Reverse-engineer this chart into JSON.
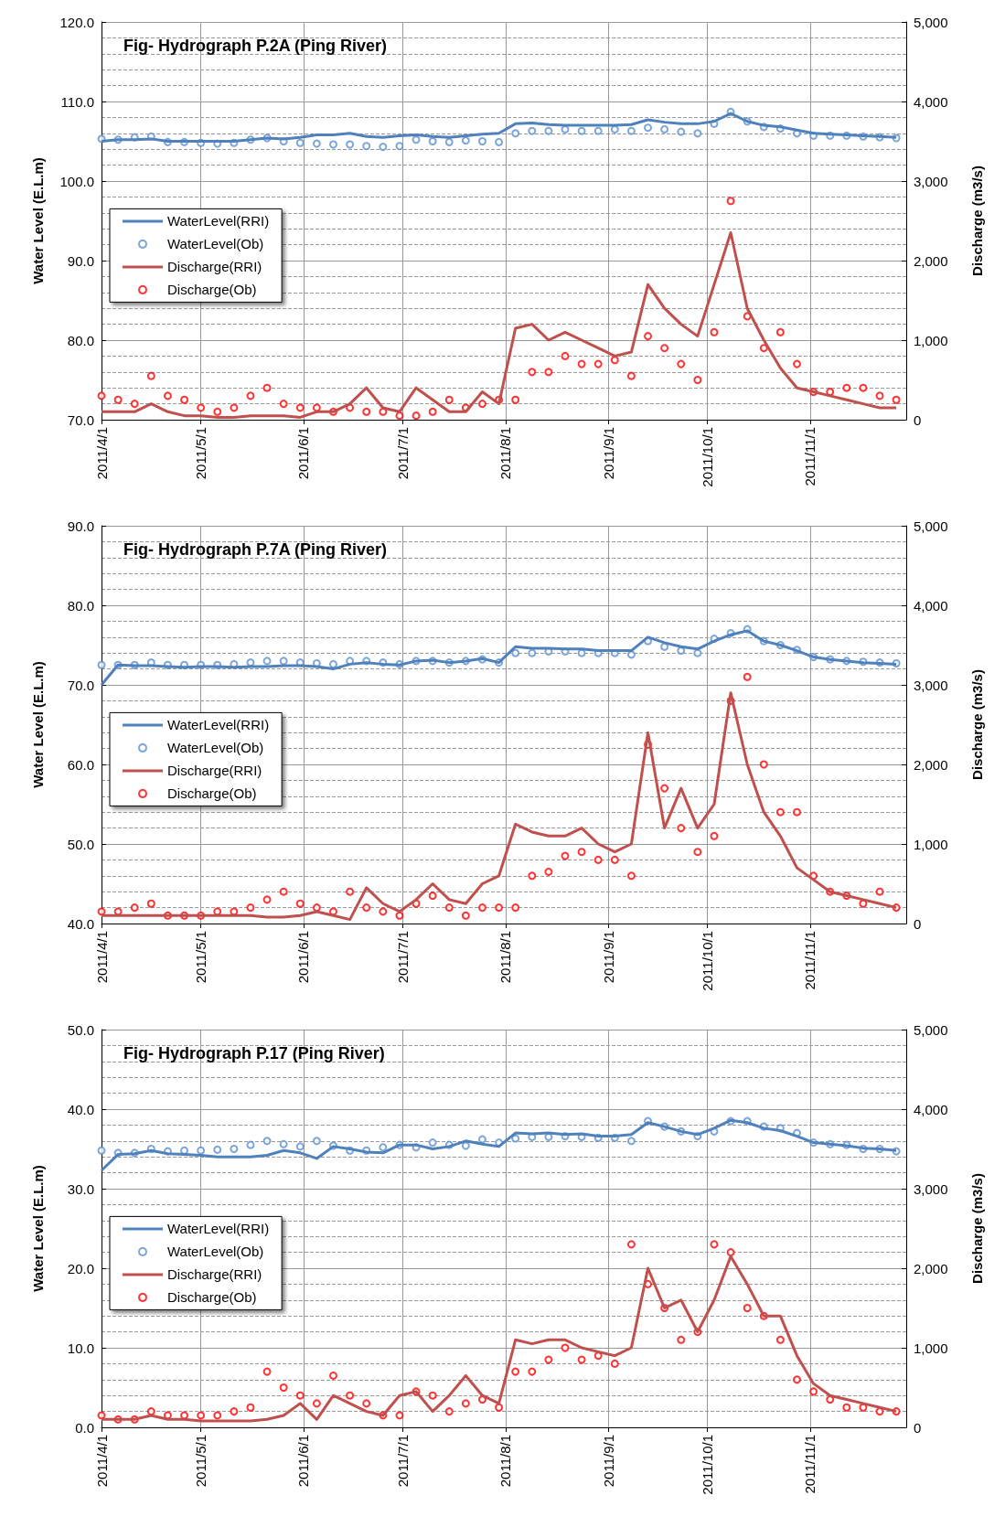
{
  "chart_data": [
    {
      "type": "line",
      "title": "Fig- Hydrograph P.2A (Ping River)",
      "ylabel": "Water Level (E.L.m)",
      "y2label": "Discharge (m3/s)",
      "grid": true,
      "legend": "left",
      "x": [
        "2011-04-01",
        "2011-04-06",
        "2011-04-11",
        "2011-04-16",
        "2011-04-21",
        "2011-04-26",
        "2011-05-01",
        "2011-05-06",
        "2011-05-11",
        "2011-05-16",
        "2011-05-21",
        "2011-05-26",
        "2011-05-31",
        "2011-06-05",
        "2011-06-10",
        "2011-06-15",
        "2011-06-20",
        "2011-06-25",
        "2011-06-30",
        "2011-07-05",
        "2011-07-10",
        "2011-07-15",
        "2011-07-20",
        "2011-07-25",
        "2011-07-30",
        "2011-08-04",
        "2011-08-09",
        "2011-08-14",
        "2011-08-19",
        "2011-08-24",
        "2011-08-29",
        "2011-09-03",
        "2011-09-08",
        "2011-09-13",
        "2011-09-18",
        "2011-09-23",
        "2011-09-28",
        "2011-10-03",
        "2011-10-08",
        "2011-10-13",
        "2011-10-18",
        "2011-10-23",
        "2011-10-28",
        "2011-11-02",
        "2011-11-07",
        "2011-11-12",
        "2011-11-17",
        "2011-11-22",
        "2011-11-27"
      ],
      "xlim": [
        "2011-04-01",
        "2011-11-30"
      ],
      "xticks": [
        {
          "value": "2011-04-01",
          "label": "2011/4/1"
        },
        {
          "value": "2011-05-01",
          "label": "2011/5/1"
        },
        {
          "value": "2011-06-01",
          "label": "2011/6/1"
        },
        {
          "value": "2011-07-01",
          "label": "2011/7/1"
        },
        {
          "value": "2011-08-01",
          "label": "2011/8/1"
        },
        {
          "value": "2011-09-01",
          "label": "2011/9/1"
        },
        {
          "value": "2011-10-01",
          "label": "2011/10/1"
        },
        {
          "value": "2011-11-01",
          "label": "2011/11/1"
        }
      ],
      "ylim": [
        70,
        120
      ],
      "yticks": [
        {
          "value": 70,
          "label": "70.0"
        },
        {
          "value": 80,
          "label": "80.0"
        },
        {
          "value": 90,
          "label": "90.0"
        },
        {
          "value": 100,
          "label": "100.0"
        },
        {
          "value": 110,
          "label": "110.0"
        },
        {
          "value": 120,
          "label": "120.0"
        }
      ],
      "y2lim": [
        0,
        5000
      ],
      "y2ticks": [
        {
          "value": 0,
          "label": "0"
        },
        {
          "value": 1000,
          "label": "1,000"
        },
        {
          "value": 2000,
          "label": "2,000"
        },
        {
          "value": 3000,
          "label": "3,000"
        },
        {
          "value": 4000,
          "label": "4,000"
        },
        {
          "value": 5000,
          "label": "5,000"
        }
      ],
      "series": [
        {
          "name": "WaterLevel(RRI)",
          "marker": "none",
          "color": "#4f81bd",
          "values": [
            105.0,
            105.2,
            105.2,
            105.3,
            105.0,
            105.0,
            105.0,
            105.0,
            105.0,
            105.2,
            105.4,
            105.3,
            105.5,
            105.8,
            105.8,
            106.0,
            105.6,
            105.5,
            105.7,
            105.8,
            105.6,
            105.5,
            105.7,
            105.9,
            106.0,
            107.2,
            107.3,
            107.1,
            107.0,
            107.0,
            107.0,
            107.0,
            107.1,
            107.7,
            107.4,
            107.2,
            107.2,
            107.5,
            108.5,
            107.5,
            107.0,
            106.8,
            106.4,
            106.0,
            105.9,
            105.8,
            105.7,
            105.6,
            105.5
          ]
        },
        {
          "name": "WaterLevel(Ob)",
          "type": "scatter",
          "marker": "circle",
          "color": "#5b8fd1",
          "values": [
            105.3,
            105.2,
            105.5,
            105.6,
            104.9,
            104.9,
            104.8,
            104.7,
            104.8,
            105.2,
            105.4,
            105.0,
            104.8,
            104.7,
            104.6,
            104.6,
            104.4,
            104.3,
            104.4,
            105.2,
            105.0,
            104.9,
            105.1,
            105.0,
            104.9,
            106.0,
            106.3,
            106.3,
            106.5,
            106.3,
            106.3,
            106.5,
            106.3,
            106.7,
            106.5,
            106.2,
            106.0,
            107.2,
            108.7,
            107.5,
            106.8,
            106.6,
            106.0,
            105.7,
            105.7,
            105.7,
            105.6,
            105.5,
            105.4
          ]
        },
        {
          "name": "Discharge(RRI)",
          "marker": "none",
          "axis": "y2",
          "color": "#c0504d",
          "values": [
            100,
            100,
            100,
            200,
            100,
            50,
            50,
            30,
            30,
            50,
            50,
            50,
            30,
            100,
            100,
            200,
            400,
            150,
            100,
            400,
            250,
            100,
            100,
            350,
            200,
            1150,
            1200,
            1000,
            1100,
            1000,
            900,
            800,
            850,
            1700,
            1400,
            1200,
            1050,
            1700,
            2350,
            1400,
            1000,
            650,
            400,
            350,
            300,
            250,
            200,
            150,
            150
          ]
        },
        {
          "name": "Discharge(Ob)",
          "type": "scatter",
          "marker": "circle",
          "axis": "y2",
          "color": "#ff0000",
          "values": [
            300,
            250,
            200,
            550,
            300,
            250,
            150,
            100,
            150,
            300,
            400,
            200,
            150,
            150,
            100,
            150,
            100,
            100,
            50,
            50,
            100,
            250,
            150,
            200,
            250,
            250,
            600,
            600,
            800,
            700,
            700,
            750,
            550,
            1050,
            900,
            700,
            500,
            1100,
            2750,
            1300,
            900,
            1100,
            700,
            350,
            350,
            400,
            400,
            300,
            250
          ]
        }
      ]
    },
    {
      "type": "line",
      "title": "Fig- Hydrograph P.7A (Ping River)",
      "ylabel": "Water Level (E.L.m)",
      "y2label": "Discharge (m3/s)",
      "grid": true,
      "legend": "left",
      "x": [
        "2011-04-01",
        "2011-04-06",
        "2011-04-11",
        "2011-04-16",
        "2011-04-21",
        "2011-04-26",
        "2011-05-01",
        "2011-05-06",
        "2011-05-11",
        "2011-05-16",
        "2011-05-21",
        "2011-05-26",
        "2011-05-31",
        "2011-06-05",
        "2011-06-10",
        "2011-06-15",
        "2011-06-20",
        "2011-06-25",
        "2011-06-30",
        "2011-07-05",
        "2011-07-10",
        "2011-07-15",
        "2011-07-20",
        "2011-07-25",
        "2011-07-30",
        "2011-08-04",
        "2011-08-09",
        "2011-08-14",
        "2011-08-19",
        "2011-08-24",
        "2011-08-29",
        "2011-09-03",
        "2011-09-08",
        "2011-09-13",
        "2011-09-18",
        "2011-09-23",
        "2011-09-28",
        "2011-10-03",
        "2011-10-08",
        "2011-10-13",
        "2011-10-18",
        "2011-10-23",
        "2011-10-28",
        "2011-11-02",
        "2011-11-07",
        "2011-11-12",
        "2011-11-17",
        "2011-11-22",
        "2011-11-27"
      ],
      "xlim": [
        "2011-04-01",
        "2011-11-30"
      ],
      "xticks": [
        {
          "value": "2011-04-01",
          "label": "2011/4/1"
        },
        {
          "value": "2011-05-01",
          "label": "2011/5/1"
        },
        {
          "value": "2011-06-01",
          "label": "2011/6/1"
        },
        {
          "value": "2011-07-01",
          "label": "2011/7/1"
        },
        {
          "value": "2011-08-01",
          "label": "2011/8/1"
        },
        {
          "value": "2011-09-01",
          "label": "2011/9/1"
        },
        {
          "value": "2011-10-01",
          "label": "2011/10/1"
        },
        {
          "value": "2011-11-01",
          "label": "2011/11/1"
        }
      ],
      "ylim": [
        40,
        90
      ],
      "yticks": [
        {
          "value": 40,
          "label": "40.0"
        },
        {
          "value": 50,
          "label": "50.0"
        },
        {
          "value": 60,
          "label": "60.0"
        },
        {
          "value": 70,
          "label": "70.0"
        },
        {
          "value": 80,
          "label": "80.0"
        },
        {
          "value": 90,
          "label": "90.0"
        }
      ],
      "y2lim": [
        0,
        5000
      ],
      "y2ticks": [
        {
          "value": 0,
          "label": "0"
        },
        {
          "value": 1000,
          "label": "1,000"
        },
        {
          "value": 2000,
          "label": "2,000"
        },
        {
          "value": 3000,
          "label": "3,000"
        },
        {
          "value": 4000,
          "label": "4,000"
        },
        {
          "value": 5000,
          "label": "5,000"
        }
      ],
      "series": [
        {
          "name": "WaterLevel(RRI)",
          "marker": "none",
          "color": "#4f81bd",
          "values": [
            70.0,
            72.5,
            72.4,
            72.4,
            72.3,
            72.2,
            72.3,
            72.3,
            72.2,
            72.3,
            72.3,
            72.4,
            72.4,
            72.3,
            72.0,
            72.6,
            72.8,
            72.6,
            72.5,
            73.0,
            73.1,
            72.8,
            73.0,
            73.3,
            72.8,
            74.8,
            74.6,
            74.6,
            74.5,
            74.5,
            74.3,
            74.3,
            74.3,
            76.0,
            75.3,
            74.8,
            74.5,
            75.5,
            76.3,
            76.8,
            75.5,
            75.0,
            74.3,
            73.5,
            73.2,
            73.0,
            72.8,
            72.7,
            72.6
          ]
        },
        {
          "name": "WaterLevel(Ob)",
          "type": "scatter",
          "marker": "circle",
          "color": "#5b8fd1",
          "values": [
            72.5,
            72.5,
            72.5,
            72.8,
            72.5,
            72.5,
            72.5,
            72.5,
            72.6,
            72.8,
            73.0,
            73.0,
            72.8,
            72.7,
            72.6,
            73.0,
            73.0,
            72.8,
            72.6,
            73.0,
            73.0,
            72.8,
            73.0,
            73.2,
            72.8,
            74.0,
            74.0,
            74.2,
            74.2,
            74.0,
            74.0,
            74.0,
            73.8,
            75.5,
            74.8,
            74.3,
            74.0,
            75.8,
            76.5,
            77.0,
            75.5,
            75.0,
            74.4,
            73.5,
            73.2,
            73.0,
            72.9,
            72.8,
            72.7
          ]
        },
        {
          "name": "Discharge(RRI)",
          "marker": "none",
          "axis": "y2",
          "color": "#c0504d",
          "values": [
            100,
            100,
            100,
            100,
            100,
            100,
            100,
            100,
            100,
            100,
            80,
            80,
            100,
            150,
            100,
            50,
            450,
            250,
            150,
            300,
            500,
            300,
            250,
            500,
            600,
            1250,
            1150,
            1100,
            1100,
            1200,
            1000,
            900,
            1000,
            2400,
            1200,
            1700,
            1200,
            1500,
            2900,
            2000,
            1400,
            1100,
            700,
            550,
            400,
            350,
            300,
            250,
            200
          ]
        },
        {
          "name": "Discharge(Ob)",
          "type": "scatter",
          "marker": "circle",
          "axis": "y2",
          "color": "#ff0000",
          "values": [
            150,
            150,
            200,
            250,
            100,
            100,
            100,
            150,
            150,
            200,
            300,
            400,
            250,
            200,
            150,
            400,
            200,
            150,
            100,
            250,
            350,
            200,
            100,
            200,
            200,
            200,
            600,
            650,
            850,
            900,
            800,
            800,
            600,
            2250,
            1700,
            1200,
            900,
            1100,
            2800,
            3100,
            2000,
            1400,
            1400,
            600,
            400,
            350,
            250,
            400,
            200
          ]
        }
      ]
    },
    {
      "type": "line",
      "title": "Fig- Hydrograph P.17 (Ping River)",
      "ylabel": "Water Level (E.L.m)",
      "y2label": "Discharge (m3/s)",
      "grid": true,
      "legend": "left",
      "x": [
        "2011-04-01",
        "2011-04-06",
        "2011-04-11",
        "2011-04-16",
        "2011-04-21",
        "2011-04-26",
        "2011-05-01",
        "2011-05-06",
        "2011-05-11",
        "2011-05-16",
        "2011-05-21",
        "2011-05-26",
        "2011-05-31",
        "2011-06-05",
        "2011-06-10",
        "2011-06-15",
        "2011-06-20",
        "2011-06-25",
        "2011-06-30",
        "2011-07-05",
        "2011-07-10",
        "2011-07-15",
        "2011-07-20",
        "2011-07-25",
        "2011-07-30",
        "2011-08-04",
        "2011-08-09",
        "2011-08-14",
        "2011-08-19",
        "2011-08-24",
        "2011-08-29",
        "2011-09-03",
        "2011-09-08",
        "2011-09-13",
        "2011-09-18",
        "2011-09-23",
        "2011-09-28",
        "2011-10-03",
        "2011-10-08",
        "2011-10-13",
        "2011-10-18",
        "2011-10-23",
        "2011-10-28",
        "2011-11-02",
        "2011-11-07",
        "2011-11-12",
        "2011-11-17",
        "2011-11-22",
        "2011-11-27"
      ],
      "xlim": [
        "2011-04-01",
        "2011-11-30"
      ],
      "xticks": [
        {
          "value": "2011-04-01",
          "label": "2011/4/1"
        },
        {
          "value": "2011-05-01",
          "label": "2011/5/1"
        },
        {
          "value": "2011-06-01",
          "label": "2011/6/1"
        },
        {
          "value": "2011-07-01",
          "label": "2011/7/1"
        },
        {
          "value": "2011-08-01",
          "label": "2011/8/1"
        },
        {
          "value": "2011-09-01",
          "label": "2011/9/1"
        },
        {
          "value": "2011-10-01",
          "label": "2011/10/1"
        },
        {
          "value": "2011-11-01",
          "label": "2011/11/1"
        }
      ],
      "ylim": [
        0,
        50
      ],
      "yticks": [
        {
          "value": 0,
          "label": "0.0"
        },
        {
          "value": 10,
          "label": "10.0"
        },
        {
          "value": 20,
          "label": "20.0"
        },
        {
          "value": 30,
          "label": "30.0"
        },
        {
          "value": 40,
          "label": "40.0"
        },
        {
          "value": 50,
          "label": "50.0"
        }
      ],
      "y2lim": [
        0,
        5000
      ],
      "y2ticks": [
        {
          "value": 0,
          "label": "0"
        },
        {
          "value": 1000,
          "label": "1,000"
        },
        {
          "value": 2000,
          "label": "2,000"
        },
        {
          "value": 3000,
          "label": "3,000"
        },
        {
          "value": 4000,
          "label": "4,000"
        },
        {
          "value": 5000,
          "label": "5,000"
        }
      ],
      "series": [
        {
          "name": "WaterLevel(RRI)",
          "marker": "none",
          "color": "#4f81bd",
          "values": [
            32.3,
            34.3,
            34.4,
            34.8,
            34.4,
            34.3,
            34.2,
            34.0,
            34.0,
            34.0,
            34.2,
            34.8,
            34.5,
            33.8,
            35.3,
            35.0,
            34.6,
            34.5,
            35.5,
            35.5,
            35.0,
            35.3,
            36.0,
            35.6,
            35.3,
            37.0,
            36.9,
            37.0,
            36.8,
            36.9,
            36.6,
            36.6,
            36.8,
            38.3,
            37.8,
            37.2,
            36.8,
            37.6,
            38.6,
            38.3,
            37.6,
            37.3,
            36.6,
            35.8,
            35.6,
            35.4,
            35.1,
            35.0,
            34.8
          ]
        },
        {
          "name": "WaterLevel(Ob)",
          "type": "scatter",
          "marker": "circle",
          "color": "#5b8fd1",
          "values": [
            34.8,
            34.5,
            34.5,
            35.0,
            34.7,
            34.8,
            34.8,
            34.9,
            35.0,
            35.5,
            36.0,
            35.6,
            35.3,
            36.0,
            35.4,
            34.8,
            34.8,
            35.2,
            35.5,
            35.2,
            35.8,
            35.5,
            35.4,
            36.2,
            35.8,
            36.3,
            36.5,
            36.5,
            36.6,
            36.5,
            36.4,
            36.4,
            36.0,
            38.5,
            37.8,
            37.2,
            36.6,
            37.2,
            38.5,
            38.5,
            37.8,
            37.6,
            37.0,
            35.8,
            35.6,
            35.5,
            35.0,
            35.0,
            34.7
          ]
        },
        {
          "name": "Discharge(RRI)",
          "marker": "none",
          "axis": "y2",
          "color": "#c0504d",
          "values": [
            100,
            100,
            100,
            150,
            100,
            100,
            80,
            80,
            80,
            80,
            100,
            150,
            300,
            100,
            400,
            300,
            200,
            150,
            400,
            450,
            200,
            400,
            650,
            400,
            300,
            1100,
            1050,
            1100,
            1100,
            1000,
            950,
            900,
            1000,
            2000,
            1500,
            1600,
            1200,
            1600,
            2150,
            1800,
            1400,
            1400,
            900,
            550,
            400,
            350,
            300,
            250,
            200
          ]
        },
        {
          "name": "Discharge(Ob)",
          "type": "scatter",
          "marker": "circle",
          "axis": "y2",
          "color": "#ff0000",
          "values": [
            150,
            100,
            100,
            200,
            150,
            150,
            150,
            150,
            200,
            250,
            700,
            500,
            400,
            300,
            650,
            400,
            300,
            150,
            150,
            450,
            400,
            200,
            300,
            350,
            250,
            700,
            700,
            850,
            1000,
            850,
            900,
            800,
            2300,
            1800,
            1500,
            1100,
            1200,
            2300,
            2200,
            1500,
            1400,
            1100,
            600,
            450,
            350,
            250,
            250,
            200,
            200
          ]
        }
      ]
    }
  ]
}
